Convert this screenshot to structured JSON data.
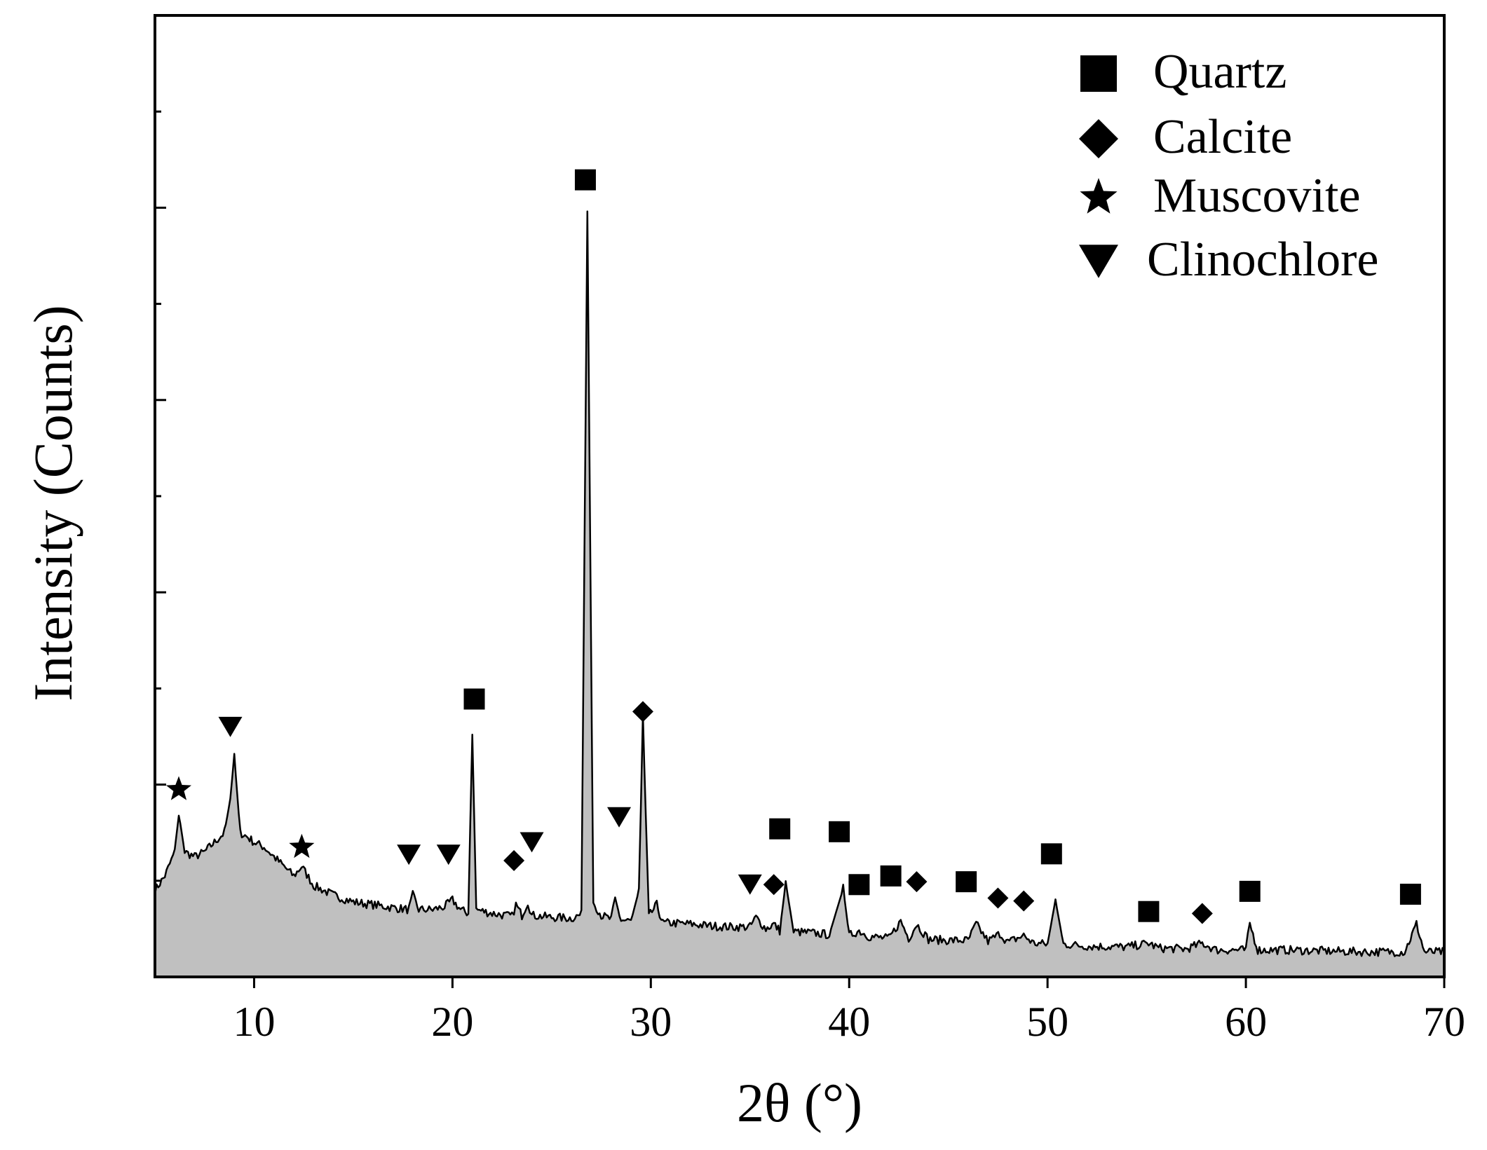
{
  "chart_data": {
    "type": "area",
    "xlabel": "2θ (°)",
    "ylabel": "Intensity (Counts)",
    "xlim": [
      5,
      70
    ],
    "ylim": [
      0,
      100
    ],
    "xticks": [
      10,
      20,
      30,
      40,
      50,
      60,
      70
    ],
    "yticks_labeled": false,
    "y_major_ticks": [
      20,
      40,
      60,
      80
    ],
    "y_minor_ticks": [
      10,
      30,
      50,
      70,
      90
    ],
    "grid": false,
    "legend_position": "top-right",
    "colors": {
      "fill": "#c0c0c0",
      "line": "#000000",
      "marker": "#000000"
    },
    "series": [
      {
        "style": "line-with-gray-fill",
        "x": [
          5,
          5.5,
          6,
          6.2,
          6.5,
          7,
          7.5,
          8,
          8.5,
          8.8,
          9,
          9.3,
          9.7,
          10,
          10.5,
          11,
          11.5,
          12,
          12.4,
          13,
          14,
          15,
          16,
          17,
          17.8,
          18,
          18.3,
          19,
          19.6,
          20,
          20.4,
          20.8,
          21,
          21.2,
          22,
          23,
          23.2,
          23.5,
          23.8,
          24,
          25,
          26,
          26.5,
          26.8,
          27.1,
          27.5,
          28,
          28.2,
          28.5,
          29,
          29.4,
          29.6,
          29.9,
          30.3,
          30.6,
          31,
          32,
          33,
          34,
          35,
          35.3,
          35.8,
          36.2,
          36.5,
          36.8,
          37.2,
          38,
          39,
          39.7,
          40,
          40.5,
          41,
          42,
          42.6,
          43,
          43.4,
          44,
          45,
          46,
          46.4,
          47,
          47.6,
          48,
          48.8,
          49.3,
          50,
          50.4,
          50.8,
          52,
          54,
          55.1,
          55.6,
          57,
          57.8,
          58.5,
          60,
          60.2,
          60.6,
          62,
          64,
          66,
          68,
          68.3,
          68.6,
          69,
          70
        ],
        "values": [
          9,
          10.5,
          13,
          17,
          13,
          12.5,
          13,
          14,
          15,
          18.5,
          23,
          15,
          14.5,
          14,
          13.5,
          12.5,
          11.5,
          10.5,
          11.5,
          9.5,
          8.5,
          7.8,
          7.5,
          7.2,
          7.0,
          8.5,
          7.0,
          7.0,
          7.3,
          8.0,
          7.0,
          6.6,
          25.5,
          7.0,
          6.6,
          6.3,
          7.5,
          6.4,
          7.8,
          6.4,
          6.2,
          6.1,
          6.5,
          80,
          7.8,
          6.4,
          6.0,
          8.0,
          5.9,
          5.8,
          9.0,
          27,
          6.3,
          7.5,
          5.6,
          5.6,
          5.5,
          5.3,
          5.2,
          5.2,
          6.2,
          5.0,
          5.5,
          4.8,
          9.8,
          4.7,
          4.6,
          4.4,
          9.2,
          4.3,
          4.8,
          4.2,
          4.0,
          5.8,
          4.0,
          5.5,
          3.9,
          3.8,
          3.8,
          5.5,
          3.7,
          4.5,
          3.6,
          4.3,
          3.5,
          3.4,
          8.0,
          3.4,
          3.2,
          3.1,
          3.5,
          3.0,
          2.9,
          3.5,
          2.8,
          2.8,
          5.5,
          2.8,
          2.8,
          2.7,
          2.6,
          2.6,
          4.0,
          5.5,
          2.6,
          2.6
        ]
      }
    ],
    "legend": [
      {
        "label": "Quartz",
        "marker": "square"
      },
      {
        "label": "Calcite",
        "marker": "diamond"
      },
      {
        "label": "Muscovite",
        "marker": "star"
      },
      {
        "label": "Clinochlore",
        "marker": "triangle-down"
      }
    ],
    "peak_markers": [
      {
        "phase": "Muscovite",
        "marker": "star",
        "x": 6.2,
        "y": 19.5
      },
      {
        "phase": "Clinochlore",
        "marker": "triangle-down",
        "x": 8.8,
        "y": 26
      },
      {
        "phase": "Muscovite",
        "marker": "star",
        "x": 12.4,
        "y": 13.5
      },
      {
        "phase": "Clinochlore",
        "marker": "triangle-down",
        "x": 17.8,
        "y": 12.7
      },
      {
        "phase": "Clinochlore",
        "marker": "triangle-down",
        "x": 19.8,
        "y": 12.7
      },
      {
        "phase": "Quartz",
        "marker": "square",
        "x": 21.1,
        "y": 28.9
      },
      {
        "phase": "Calcite",
        "marker": "diamond",
        "x": 23.1,
        "y": 12.1
      },
      {
        "phase": "Clinochlore",
        "marker": "triangle-down",
        "x": 24.0,
        "y": 14.0
      },
      {
        "phase": "Quartz",
        "marker": "square",
        "x": 26.7,
        "y": 82.9
      },
      {
        "phase": "Clinochlore",
        "marker": "triangle-down",
        "x": 28.4,
        "y": 16.6
      },
      {
        "phase": "Calcite",
        "marker": "diamond",
        "x": 29.6,
        "y": 27.6
      },
      {
        "phase": "Clinochlore",
        "marker": "triangle-down",
        "x": 35.0,
        "y": 9.6
      },
      {
        "phase": "Calcite",
        "marker": "diamond",
        "x": 36.2,
        "y": 9.6
      },
      {
        "phase": "Quartz",
        "marker": "square",
        "x": 36.5,
        "y": 15.4
      },
      {
        "phase": "Quartz",
        "marker": "square",
        "x": 39.5,
        "y": 15.1
      },
      {
        "phase": "Quartz",
        "marker": "square",
        "x": 40.5,
        "y": 9.6
      },
      {
        "phase": "Quartz",
        "marker": "square",
        "x": 42.1,
        "y": 10.5
      },
      {
        "phase": "Calcite",
        "marker": "diamond",
        "x": 43.4,
        "y": 9.9
      },
      {
        "phase": "Quartz",
        "marker": "square",
        "x": 45.9,
        "y": 9.9
      },
      {
        "phase": "Calcite",
        "marker": "diamond",
        "x": 47.5,
        "y": 8.2
      },
      {
        "phase": "Calcite",
        "marker": "diamond",
        "x": 48.8,
        "y": 7.9
      },
      {
        "phase": "Quartz",
        "marker": "square",
        "x": 50.2,
        "y": 12.8
      },
      {
        "phase": "Quartz",
        "marker": "square",
        "x": 55.1,
        "y": 6.8
      },
      {
        "phase": "Calcite",
        "marker": "diamond",
        "x": 57.8,
        "y": 6.6
      },
      {
        "phase": "Quartz",
        "marker": "square",
        "x": 60.2,
        "y": 8.9
      },
      {
        "phase": "Quartz",
        "marker": "square",
        "x": 68.3,
        "y": 8.6
      }
    ]
  }
}
